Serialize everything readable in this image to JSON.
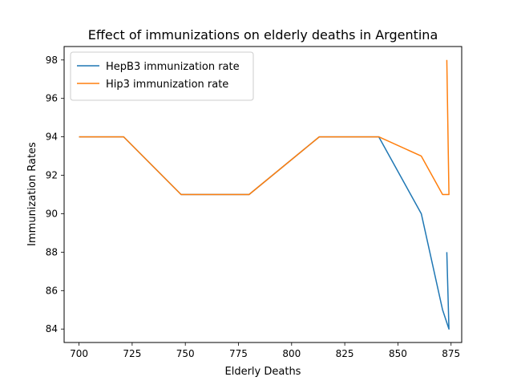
{
  "chart_data": {
    "type": "line",
    "title": "Effect of immunizations on elderly deaths in Argentina",
    "xlabel": "Elderly Deaths",
    "ylabel": "Immunization Rates",
    "xlim": [
      693,
      880
    ],
    "ylim": [
      83.3,
      98.7
    ],
    "xticks": [
      700,
      725,
      750,
      775,
      800,
      825,
      850,
      875
    ],
    "yticks": [
      84,
      86,
      88,
      90,
      92,
      94,
      96,
      98
    ],
    "grid": false,
    "legend_position": "top-left",
    "series": [
      {
        "name": "HepB3 immunization rate",
        "color": "#1f77b4",
        "x": [
          700,
          721,
          748,
          780,
          813,
          841,
          861,
          871,
          874,
          873
        ],
        "y": [
          94,
          94,
          91,
          91,
          94,
          94,
          90,
          85,
          84,
          88
        ]
      },
      {
        "name": "Hip3 immunization rate",
        "color": "#ff7f0e",
        "x": [
          700,
          721,
          748,
          780,
          813,
          841,
          861,
          871,
          874,
          873
        ],
        "y": [
          94,
          94,
          91,
          91,
          94,
          94,
          93,
          91,
          91,
          98
        ]
      }
    ]
  }
}
